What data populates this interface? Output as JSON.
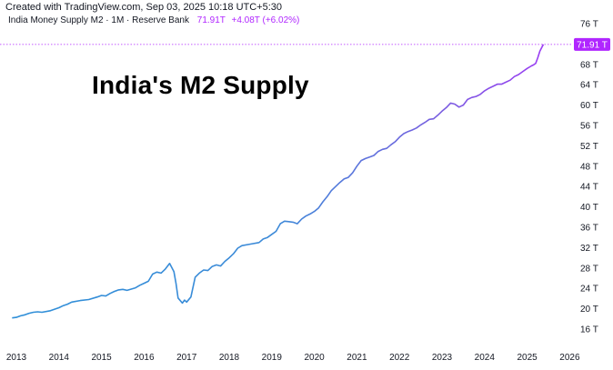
{
  "header": {
    "credit": "Created with TradingView.com, Sep 03, 2025 10:18 UTC+5:30",
    "series_label": "India Money Supply M2 · 1M · Reserve Bank",
    "last_value": "71.91T",
    "change": "+4.08T (+6.02%)"
  },
  "chart_data": {
    "type": "line",
    "title": "India's M2 Supply",
    "xlabel": "",
    "ylabel": "",
    "x_ticks": [
      "2013",
      "2014",
      "2015",
      "2016",
      "2017",
      "2018",
      "2019",
      "2020",
      "2021",
      "2022",
      "2023",
      "2024",
      "2025",
      "2026"
    ],
    "y_ticks": [
      "16 T",
      "20 T",
      "24 T",
      "28 T",
      "32 T",
      "36 T",
      "40 T",
      "44 T",
      "48 T",
      "52 T",
      "56 T",
      "60 T",
      "64 T",
      "68 T",
      "72 T",
      "76 T"
    ],
    "ylim": [
      16,
      76
    ],
    "xlim": [
      2012.8,
      2026
    ],
    "current_price_label": "71.91 T",
    "grid": false,
    "colors": {
      "line_start": "#2e8fd8",
      "line_end": "#b026ff",
      "price_line": "#b026ff"
    },
    "series": [
      {
        "x": [
          2012.9,
          2013.0,
          2013.1,
          2013.2,
          2013.3,
          2013.4,
          2013.5,
          2013.6,
          2013.8,
          2014.0,
          2014.1,
          2014.2,
          2014.3,
          2014.5,
          2014.7,
          2014.9,
          2015.0,
          2015.1,
          2015.2,
          2015.3,
          2015.4,
          2015.5,
          2015.6,
          2015.8,
          2015.9,
          2016.0,
          2016.1,
          2016.2,
          2016.3,
          2016.4,
          2016.5,
          2016.6,
          2016.7,
          2016.75,
          2016.8,
          2016.9,
          2016.95,
          2017.0,
          2017.1,
          2017.2,
          2017.3,
          2017.4,
          2017.5,
          2017.6,
          2017.7,
          2017.8,
          2017.9,
          2018.0,
          2018.1,
          2018.2,
          2018.3,
          2018.5,
          2018.7,
          2018.8,
          2018.9,
          2019.0,
          2019.1,
          2019.2,
          2019.3,
          2019.4,
          2019.5,
          2019.6,
          2019.7,
          2019.8,
          2019.9,
          2020.0,
          2020.1,
          2020.2,
          2020.3,
          2020.4,
          2020.5,
          2020.6,
          2020.7,
          2020.8,
          2020.9,
          2021.0,
          2021.1,
          2021.2,
          2021.3,
          2021.4,
          2021.5,
          2021.6,
          2021.7,
          2021.8,
          2021.9,
          2022.0,
          2022.1,
          2022.2,
          2022.3,
          2022.4,
          2022.5,
          2022.6,
          2022.7,
          2022.8,
          2022.9,
          2023.0,
          2023.1,
          2023.2,
          2023.3,
          2023.4,
          2023.5,
          2023.6,
          2023.7,
          2023.8,
          2023.9,
          2024.0,
          2024.1,
          2024.2,
          2024.3,
          2024.4,
          2024.5,
          2024.6,
          2024.7,
          2024.8,
          2024.9,
          2025.0,
          2025.1,
          2025.15,
          2025.2,
          2025.25,
          2025.3,
          2025.38
        ],
        "values": [
          18.2,
          18.3,
          18.6,
          18.8,
          19.1,
          19.3,
          19.4,
          19.3,
          19.6,
          20.2,
          20.6,
          20.9,
          21.3,
          21.6,
          21.8,
          22.3,
          22.6,
          22.5,
          23.0,
          23.4,
          23.7,
          23.8,
          23.6,
          24.1,
          24.6,
          25.0,
          25.4,
          26.8,
          27.2,
          27.0,
          27.8,
          28.9,
          27.3,
          25.0,
          22.1,
          21.1,
          21.7,
          21.3,
          22.3,
          26.2,
          27.0,
          27.6,
          27.5,
          28.3,
          28.6,
          28.4,
          29.3,
          30.0,
          30.8,
          31.9,
          32.4,
          32.7,
          33.0,
          33.7,
          34.0,
          34.6,
          35.2,
          36.7,
          37.2,
          37.1,
          37.0,
          36.7,
          37.6,
          38.2,
          38.6,
          39.1,
          39.8,
          41.0,
          42.0,
          43.2,
          44.0,
          44.8,
          45.5,
          45.8,
          46.7,
          48.0,
          49.1,
          49.5,
          49.8,
          50.1,
          50.9,
          51.3,
          51.5,
          52.2,
          52.8,
          53.7,
          54.4,
          54.8,
          55.1,
          55.5,
          56.1,
          56.6,
          57.2,
          57.3,
          58.0,
          58.8,
          59.5,
          60.4,
          60.2,
          59.6,
          60.0,
          61.1,
          61.5,
          61.7,
          62.1,
          62.8,
          63.3,
          63.7,
          64.1,
          64.1,
          64.5,
          64.9,
          65.6,
          66.0,
          66.6,
          67.2,
          67.7,
          67.9,
          68.2,
          69.3,
          70.6,
          71.91
        ]
      }
    ]
  }
}
